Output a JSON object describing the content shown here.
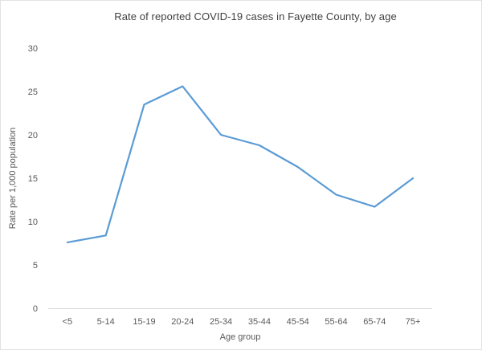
{
  "chart_data": {
    "type": "line",
    "title": "Rate of reported COVID-19 cases in Fayette County, by age",
    "xlabel": "Age group",
    "ylabel": "Rate per 1,000 population",
    "categories": [
      "<5",
      "5-14",
      "15-19",
      "20-24",
      "25-34",
      "35-44",
      "45-54",
      "55-64",
      "65-74",
      "75+"
    ],
    "values": [
      7.6,
      8.4,
      23.5,
      25.6,
      20.0,
      18.8,
      16.3,
      13.1,
      11.7,
      15.0
    ],
    "ylim": [
      0,
      30
    ],
    "yticks": [
      0,
      5,
      10,
      15,
      20,
      25,
      30
    ],
    "grid": false,
    "legend": "none",
    "series_name": "Rate per 1,000 population"
  },
  "colors": {
    "line": "#5B9BD5",
    "axis_line": "#D9D9D9",
    "tick_text": "#595959",
    "title_text": "#404040",
    "background": "#FFFFFF",
    "border": "#E2E2E2"
  }
}
